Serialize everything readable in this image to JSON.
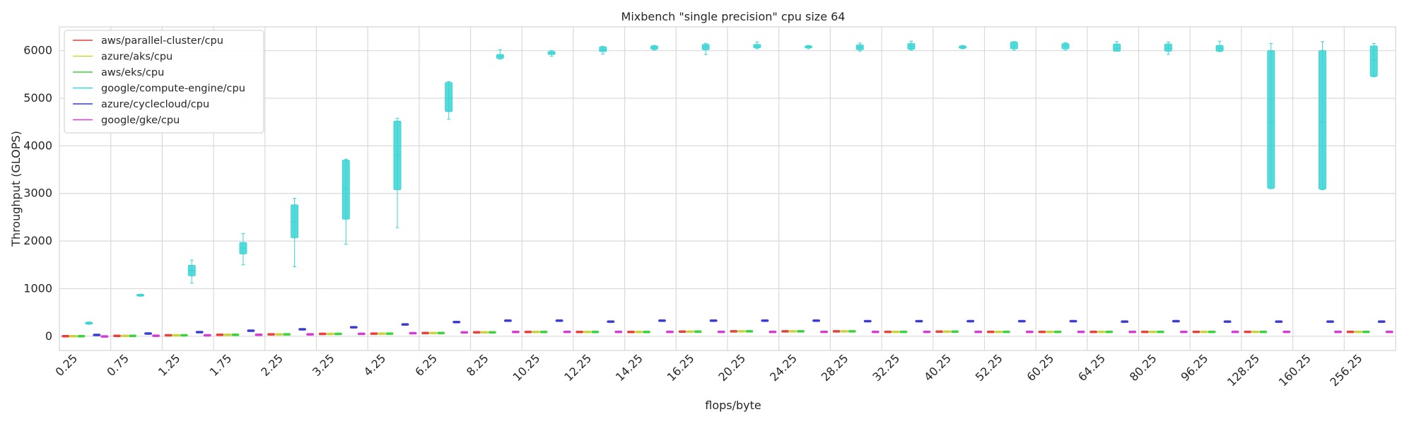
{
  "chart_data": {
    "type": "box",
    "title": "Mixbench \"single precision\" cpu size 64",
    "xlabel": "flops/byte",
    "ylabel": "Throughput (GLOPS)",
    "ylim": [
      -300,
      6500
    ],
    "yticks": [
      0,
      1000,
      2000,
      3000,
      4000,
      5000,
      6000
    ],
    "grid": true,
    "legend_position": "top-left",
    "categories": [
      "0.25",
      "0.75",
      "1.25",
      "1.75",
      "2.25",
      "3.25",
      "4.25",
      "6.25",
      "8.25",
      "10.25",
      "12.25",
      "14.25",
      "16.25",
      "20.25",
      "24.25",
      "28.25",
      "32.25",
      "40.25",
      "52.25",
      "60.25",
      "64.25",
      "80.25",
      "96.25",
      "128.25",
      "160.25",
      "256.25"
    ],
    "series": [
      {
        "name": "aws/parallel-cluster/cpu",
        "color": "#e8403a",
        "boxes": [
          [
            -5,
            -2,
            0,
            2,
            5
          ],
          [
            4,
            6,
            8,
            10,
            12
          ],
          [
            15,
            18,
            20,
            22,
            25
          ],
          [
            25,
            28,
            30,
            32,
            35
          ],
          [
            35,
            38,
            40,
            42,
            45
          ],
          [
            40,
            45,
            50,
            52,
            55
          ],
          [
            48,
            52,
            55,
            58,
            60
          ],
          [
            60,
            65,
            68,
            70,
            72
          ],
          [
            75,
            80,
            82,
            85,
            88
          ],
          [
            85,
            88,
            90,
            92,
            95
          ],
          [
            85,
            88,
            90,
            92,
            95
          ],
          [
            85,
            88,
            90,
            92,
            95
          ],
          [
            90,
            95,
            98,
            100,
            105
          ],
          [
            95,
            100,
            102,
            105,
            110
          ],
          [
            95,
            100,
            102,
            105,
            110
          ],
          [
            95,
            100,
            102,
            105,
            110
          ],
          [
            88,
            90,
            92,
            94,
            96
          ],
          [
            92,
            95,
            98,
            100,
            102
          ],
          [
            88,
            90,
            92,
            94,
            96
          ],
          [
            88,
            90,
            92,
            94,
            96
          ],
          [
            88,
            90,
            92,
            94,
            96
          ],
          [
            88,
            90,
            92,
            94,
            96
          ],
          [
            88,
            90,
            92,
            94,
            96
          ],
          [
            88,
            90,
            92,
            94,
            96
          ],
          null,
          [
            88,
            90,
            92,
            94,
            96
          ]
        ]
      },
      {
        "name": "azure/aks/cpu",
        "color": "#c9d43a",
        "boxes": [
          [
            -5,
            -2,
            0,
            2,
            5
          ],
          [
            4,
            6,
            8,
            10,
            12
          ],
          [
            15,
            18,
            20,
            22,
            25
          ],
          [
            25,
            28,
            30,
            32,
            35
          ],
          [
            35,
            38,
            40,
            42,
            45
          ],
          [
            40,
            45,
            50,
            52,
            55
          ],
          [
            48,
            52,
            55,
            58,
            60
          ],
          [
            60,
            65,
            68,
            70,
            72
          ],
          [
            75,
            80,
            82,
            85,
            88
          ],
          [
            85,
            88,
            90,
            92,
            95
          ],
          [
            85,
            88,
            90,
            92,
            95
          ],
          [
            85,
            88,
            90,
            92,
            95
          ],
          [
            90,
            95,
            98,
            100,
            105
          ],
          [
            95,
            100,
            102,
            105,
            110
          ],
          [
            95,
            100,
            102,
            105,
            110
          ],
          [
            95,
            100,
            102,
            105,
            110
          ],
          [
            88,
            90,
            92,
            94,
            96
          ],
          [
            92,
            95,
            98,
            100,
            102
          ],
          [
            88,
            90,
            92,
            94,
            96
          ],
          [
            88,
            90,
            92,
            94,
            96
          ],
          [
            88,
            90,
            92,
            94,
            96
          ],
          [
            88,
            90,
            92,
            94,
            96
          ],
          [
            88,
            90,
            92,
            94,
            96
          ],
          [
            88,
            90,
            92,
            94,
            96
          ],
          null,
          [
            88,
            90,
            92,
            94,
            96
          ]
        ]
      },
      {
        "name": "aws/eks/cpu",
        "color": "#3ad43a",
        "boxes": [
          [
            -5,
            -2,
            0,
            2,
            5
          ],
          [
            4,
            6,
            8,
            10,
            12
          ],
          [
            15,
            18,
            20,
            22,
            25
          ],
          [
            25,
            28,
            30,
            32,
            35
          ],
          [
            35,
            38,
            40,
            42,
            45
          ],
          [
            40,
            45,
            50,
            52,
            55
          ],
          [
            48,
            52,
            55,
            58,
            60
          ],
          [
            60,
            65,
            68,
            70,
            72
          ],
          [
            75,
            80,
            82,
            85,
            88
          ],
          [
            85,
            88,
            90,
            92,
            95
          ],
          [
            85,
            88,
            90,
            92,
            95
          ],
          [
            85,
            88,
            90,
            92,
            95
          ],
          [
            90,
            95,
            98,
            100,
            105
          ],
          [
            95,
            100,
            102,
            105,
            110
          ],
          [
            95,
            100,
            102,
            105,
            110
          ],
          [
            95,
            100,
            102,
            105,
            110
          ],
          [
            88,
            90,
            92,
            94,
            96
          ],
          [
            92,
            95,
            98,
            100,
            102
          ],
          [
            88,
            90,
            92,
            94,
            96
          ],
          [
            88,
            90,
            92,
            94,
            96
          ],
          [
            88,
            90,
            92,
            94,
            96
          ],
          [
            88,
            90,
            92,
            94,
            96
          ],
          [
            88,
            90,
            92,
            94,
            96
          ],
          [
            88,
            90,
            92,
            94,
            96
          ],
          null,
          [
            88,
            90,
            92,
            94,
            96
          ]
        ]
      },
      {
        "name": "google/compute-engine/cpu",
        "color": "#3ad4d4",
        "boxes": [
          [
            250,
            260,
            275,
            290,
            300
          ],
          [
            840,
            850,
            860,
            875,
            885
          ],
          [
            1120,
            1270,
            1380,
            1490,
            1600
          ],
          [
            1500,
            1730,
            1850,
            1970,
            2160
          ],
          [
            1460,
            2070,
            2400,
            2760,
            2900
          ],
          [
            1930,
            2460,
            3100,
            3700,
            3720
          ],
          [
            2280,
            3080,
            3800,
            4520,
            4580
          ],
          [
            4560,
            4720,
            5000,
            5330,
            5350
          ],
          [
            5820,
            5840,
            5880,
            5920,
            6020
          ],
          [
            5880,
            5920,
            5950,
            5980,
            6000
          ],
          [
            5930,
            5980,
            6020,
            6080,
            6090
          ],
          [
            6010,
            6030,
            6060,
            6100,
            6110
          ],
          [
            5920,
            6020,
            6080,
            6130,
            6150
          ],
          [
            6040,
            6060,
            6100,
            6130,
            6180
          ],
          [
            6040,
            6060,
            6080,
            6100,
            6110
          ],
          [
            5990,
            6020,
            6060,
            6120,
            6160
          ],
          [
            6010,
            6030,
            6100,
            6150,
            6200
          ],
          [
            6040,
            6050,
            6070,
            6100,
            6110
          ],
          [
            6010,
            6040,
            6100,
            6180,
            6190
          ],
          [
            6010,
            6040,
            6100,
            6150,
            6170
          ],
          [
            6000,
            5990,
            6050,
            6140,
            6190
          ],
          [
            5920,
            5990,
            6050,
            6140,
            6180
          ],
          [
            5980,
            5990,
            6050,
            6110,
            6200
          ],
          [
            3100,
            3110,
            4500,
            6000,
            6150
          ],
          [
            3080,
            3090,
            4500,
            6000,
            6190
          ],
          [
            5450,
            5460,
            5800,
            6100,
            6150
          ]
        ]
      },
      {
        "name": "azure/cyclecloud/cpu",
        "color": "#3a3ad4",
        "boxes": [
          [
            20,
            24,
            28,
            30,
            32
          ],
          [
            50,
            54,
            56,
            58,
            62
          ],
          [
            80,
            84,
            86,
            88,
            92
          ],
          [
            110,
            114,
            116,
            118,
            122
          ],
          [
            140,
            144,
            146,
            148,
            152
          ],
          [
            180,
            184,
            188,
            192,
            196
          ],
          [
            240,
            244,
            248,
            252,
            256
          ],
          [
            290,
            294,
            298,
            302,
            306
          ],
          [
            320,
            324,
            328,
            332,
            336
          ],
          [
            320,
            324,
            328,
            332,
            336
          ],
          [
            300,
            304,
            306,
            308,
            312
          ],
          [
            320,
            324,
            328,
            332,
            336
          ],
          [
            320,
            324,
            328,
            332,
            336
          ],
          [
            320,
            324,
            328,
            332,
            336
          ],
          [
            320,
            324,
            328,
            332,
            336
          ],
          [
            310,
            314,
            316,
            318,
            322
          ],
          [
            310,
            314,
            316,
            318,
            322
          ],
          [
            310,
            314,
            316,
            318,
            322
          ],
          [
            310,
            314,
            316,
            318,
            322
          ],
          [
            310,
            314,
            316,
            318,
            322
          ],
          [
            300,
            304,
            306,
            308,
            312
          ],
          [
            310,
            314,
            316,
            318,
            322
          ],
          [
            300,
            304,
            306,
            308,
            312
          ],
          [
            300,
            304,
            306,
            308,
            312
          ],
          [
            300,
            304,
            306,
            308,
            312
          ],
          [
            300,
            304,
            306,
            308,
            312
          ]
        ]
      },
      {
        "name": "google/gke/cpu",
        "color": "#d43ad4",
        "boxes": [
          [
            -10,
            -6,
            -4,
            -2,
            2
          ],
          [
            5,
            8,
            10,
            12,
            15
          ],
          [
            15,
            18,
            20,
            22,
            25
          ],
          [
            25,
            28,
            30,
            32,
            35
          ],
          [
            35,
            38,
            40,
            42,
            45
          ],
          [
            45,
            48,
            50,
            52,
            55
          ],
          [
            60,
            62,
            64,
            66,
            68
          ],
          [
            75,
            78,
            80,
            82,
            85
          ],
          [
            85,
            88,
            90,
            92,
            95
          ],
          [
            88,
            90,
            92,
            94,
            96
          ],
          [
            88,
            90,
            92,
            94,
            96
          ],
          [
            88,
            90,
            92,
            94,
            96
          ],
          [
            88,
            90,
            92,
            94,
            96
          ],
          [
            88,
            90,
            92,
            94,
            96
          ],
          [
            88,
            90,
            92,
            94,
            96
          ],
          [
            88,
            90,
            92,
            94,
            96
          ],
          [
            88,
            90,
            92,
            94,
            96
          ],
          [
            88,
            90,
            92,
            94,
            96
          ],
          [
            88,
            90,
            92,
            94,
            96
          ],
          [
            88,
            90,
            92,
            94,
            96
          ],
          [
            88,
            90,
            92,
            94,
            96
          ],
          [
            88,
            90,
            92,
            94,
            96
          ],
          [
            88,
            90,
            92,
            94,
            96
          ],
          [
            88,
            90,
            92,
            94,
            96
          ],
          [
            88,
            90,
            92,
            94,
            96
          ],
          [
            88,
            90,
            92,
            94,
            96
          ]
        ]
      }
    ]
  }
}
